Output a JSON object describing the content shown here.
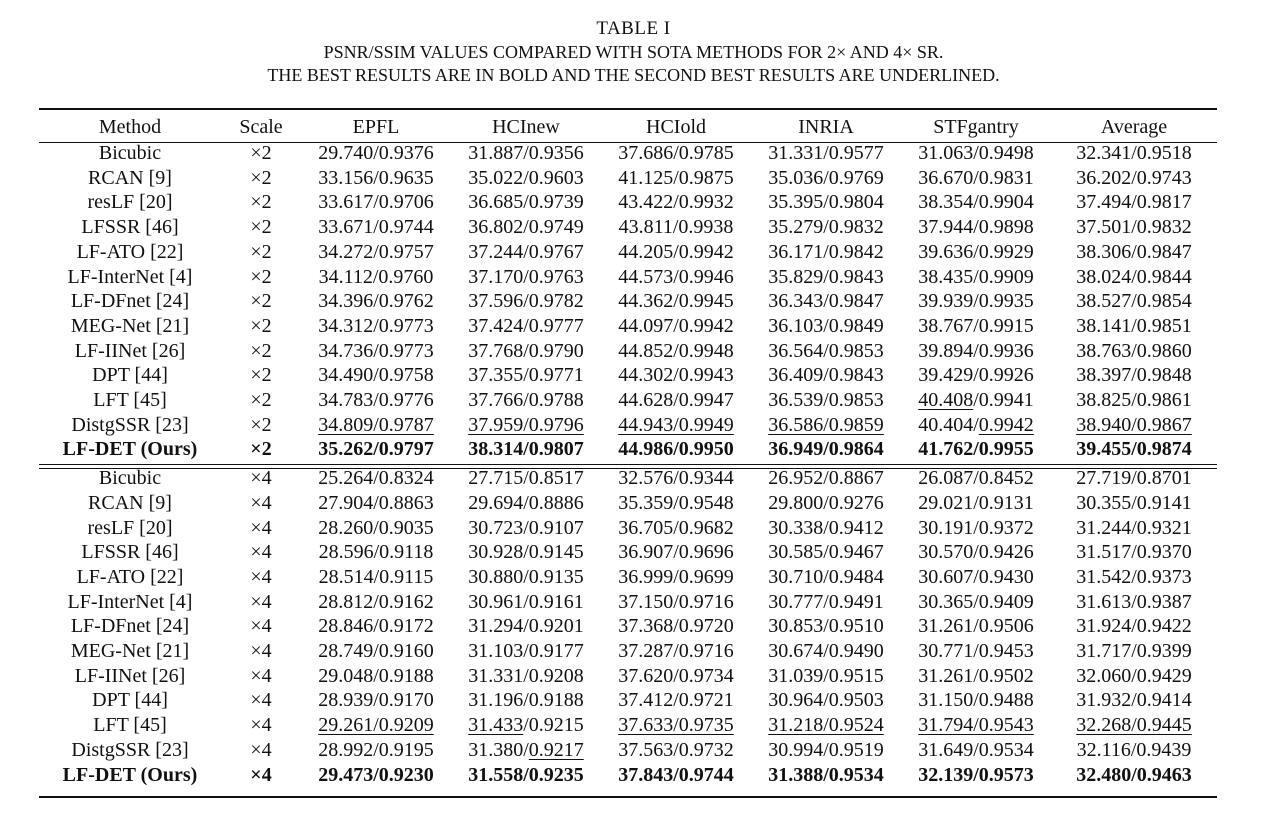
{
  "table_caption": {
    "label": "TABLE I",
    "line1": "PSNR/SSIM VALUES COMPARED WITH SOTA METHODS FOR 2× AND 4× SR.",
    "line2": "THE BEST RESULTS ARE IN BOLD AND THE SECOND BEST RESULTS ARE UNDERLINED."
  },
  "columns": [
    "Method",
    "Scale",
    "EPFL",
    "HCInew",
    "HCIold",
    "INRIA",
    "STFgantry",
    "Average"
  ],
  "sections": [
    {
      "rows": [
        {
          "method": "Bicubic",
          "scale": "×2",
          "cells": [
            "29.740/0.9376",
            "31.887/0.9356",
            "37.686/0.9785",
            "31.331/0.9577",
            "31.063/0.9498",
            "32.341/0.9518"
          ]
        },
        {
          "method": "RCAN [9]",
          "scale": "×2",
          "cells": [
            "33.156/0.9635",
            "35.022/0.9603",
            "41.125/0.9875",
            "35.036/0.9769",
            "36.670/0.9831",
            "36.202/0.9743"
          ]
        },
        {
          "method": "resLF [20]",
          "scale": "×2",
          "cells": [
            "33.617/0.9706",
            "36.685/0.9739",
            "43.422/0.9932",
            "35.395/0.9804",
            "38.354/0.9904",
            "37.494/0.9817"
          ]
        },
        {
          "method": "LFSSR [46]",
          "scale": "×2",
          "cells": [
            "33.671/0.9744",
            "36.802/0.9749",
            "43.811/0.9938",
            "35.279/0.9832",
            "37.944/0.9898",
            "37.501/0.9832"
          ]
        },
        {
          "method": "LF-ATO [22]",
          "scale": "×2",
          "cells": [
            "34.272/0.9757",
            "37.244/0.9767",
            "44.205/0.9942",
            "36.171/0.9842",
            "39.636/0.9929",
            "38.306/0.9847"
          ]
        },
        {
          "method": "LF-InterNet [4]",
          "scale": "×2",
          "cells": [
            "34.112/0.9760",
            "37.170/0.9763",
            "44.573/0.9946",
            "35.829/0.9843",
            "38.435/0.9909",
            "38.024/0.9844"
          ]
        },
        {
          "method": "LF-DFnet [24]",
          "scale": "×2",
          "cells": [
            "34.396/0.9762",
            "37.596/0.9782",
            "44.362/0.9945",
            "36.343/0.9847",
            "39.939/0.9935",
            "38.527/0.9854"
          ]
        },
        {
          "method": "MEG-Net [21]",
          "scale": "×2",
          "cells": [
            "34.312/0.9773",
            "37.424/0.9777",
            "44.097/0.9942",
            "36.103/0.9849",
            "38.767/0.9915",
            "38.141/0.9851"
          ]
        },
        {
          "method": "LF-IINet [26]",
          "scale": "×2",
          "cells": [
            "34.736/0.9773",
            "37.768/0.9790",
            "44.852/0.9948",
            "36.564/0.9853",
            "39.894/0.9936",
            "38.763/0.9860"
          ]
        },
        {
          "method": "DPT [44]",
          "scale": "×2",
          "cells": [
            "34.490/0.9758",
            "37.355/0.9771",
            "44.302/0.9943",
            "36.409/0.9843",
            "39.429/0.9926",
            "38.397/0.9848"
          ]
        },
        {
          "method": "LFT [45]",
          "scale": "×2",
          "cells": [
            "34.783/0.9776",
            "37.766/0.9788",
            "44.628/0.9947",
            "36.539/0.9853",
            "40.408/0.9941",
            "38.825/0.9861"
          ]
        },
        {
          "method": "DistgSSR [23]",
          "scale": "×2",
          "cells": [
            "34.809/0.9787",
            "37.959/0.9796",
            "44.943/0.9949",
            "36.586/0.9859",
            "40.404/0.9942",
            "38.940/0.9867"
          ]
        },
        {
          "method": "LF-DET (Ours)",
          "scale": "×2",
          "cells": [
            "35.262/0.9797",
            "38.314/0.9807",
            "44.986/0.9950",
            "36.949/0.9864",
            "41.762/0.9955",
            "39.455/0.9874"
          ]
        }
      ]
    },
    {
      "rows": [
        {
          "method": "Bicubic",
          "scale": "×4",
          "cells": [
            "25.264/0.8324",
            "27.715/0.8517",
            "32.576/0.9344",
            "26.952/0.8867",
            "26.087/0.8452",
            "27.719/0.8701"
          ]
        },
        {
          "method": "RCAN [9]",
          "scale": "×4",
          "cells": [
            "27.904/0.8863",
            "29.694/0.8886",
            "35.359/0.9548",
            "29.800/0.9276",
            "29.021/0.9131",
            "30.355/0.9141"
          ]
        },
        {
          "method": "resLF [20]",
          "scale": "×4",
          "cells": [
            "28.260/0.9035",
            "30.723/0.9107",
            "36.705/0.9682",
            "30.338/0.9412",
            "30.191/0.9372",
            "31.244/0.9321"
          ]
        },
        {
          "method": "LFSSR [46]",
          "scale": "×4",
          "cells": [
            "28.596/0.9118",
            "30.928/0.9145",
            "36.907/0.9696",
            "30.585/0.9467",
            "30.570/0.9426",
            "31.517/0.9370"
          ]
        },
        {
          "method": "LF-ATO [22]",
          "scale": "×4",
          "cells": [
            "28.514/0.9115",
            "30.880/0.9135",
            "36.999/0.9699",
            "30.710/0.9484",
            "30.607/0.9430",
            "31.542/0.9373"
          ]
        },
        {
          "method": "LF-InterNet [4]",
          "scale": "×4",
          "cells": [
            "28.812/0.9162",
            "30.961/0.9161",
            "37.150/0.9716",
            "30.777/0.9491",
            "30.365/0.9409",
            "31.613/0.9387"
          ]
        },
        {
          "method": "LF-DFnet [24]",
          "scale": "×4",
          "cells": [
            "28.846/0.9172",
            "31.294/0.9201",
            "37.368/0.9720",
            "30.853/0.9510",
            "31.261/0.9506",
            "31.924/0.9422"
          ]
        },
        {
          "method": "MEG-Net [21]",
          "scale": "×4",
          "cells": [
            "28.749/0.9160",
            "31.103/0.9177",
            "37.287/0.9716",
            "30.674/0.9490",
            "30.771/0.9453",
            "31.717/0.9399"
          ]
        },
        {
          "method": "LF-IINet [26]",
          "scale": "×4",
          "cells": [
            "29.048/0.9188",
            "31.331/0.9208",
            "37.620/0.9734",
            "31.039/0.9515",
            "31.261/0.9502",
            "32.060/0.9429"
          ]
        },
        {
          "method": "DPT [44]",
          "scale": "×4",
          "cells": [
            "28.939/0.9170",
            "31.196/0.9188",
            "37.412/0.9721",
            "30.964/0.9503",
            "31.150/0.9488",
            "31.932/0.9414"
          ]
        },
        {
          "method": "LFT [45]",
          "scale": "×4",
          "cells": [
            "29.261/0.9209",
            "31.433/0.9215",
            "37.633/0.9735",
            "31.218/0.9524",
            "31.794/0.9543",
            "32.268/0.9445"
          ]
        },
        {
          "method": "DistgSSR [23]",
          "scale": "×4",
          "cells": [
            "28.992/0.9195",
            "31.380/0.9217",
            "37.563/0.9732",
            "30.994/0.9519",
            "31.649/0.9534",
            "32.116/0.9439"
          ]
        },
        {
          "method": "LF-DET (Ours)",
          "scale": "×4",
          "cells": [
            "29.473/0.9230",
            "31.558/0.9235",
            "37.843/0.9744",
            "31.388/0.9534",
            "32.139/0.9573",
            "32.480/0.9463"
          ]
        }
      ]
    }
  ]
}
